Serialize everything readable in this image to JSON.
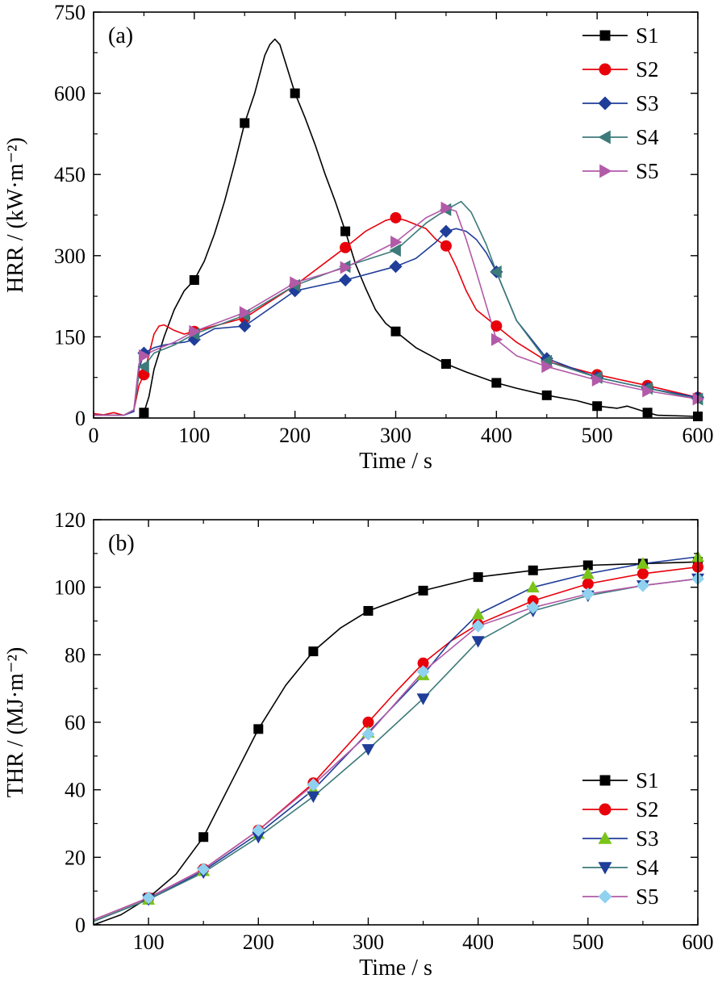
{
  "figure": {
    "panels": [
      "(a)",
      "(b)"
    ]
  },
  "chart_data": [
    {
      "type": "line",
      "panel_label": "(a)",
      "xlabel": "Time / s",
      "ylabel": "HRR / (kW·m⁻²)",
      "xlim": [
        0,
        600
      ],
      "ylim": [
        0,
        750
      ],
      "xticks": [
        0,
        100,
        200,
        300,
        400,
        500,
        600
      ],
      "yticks": [
        0,
        150,
        300,
        450,
        600,
        750
      ],
      "legend_position": "top-right",
      "grid": false,
      "series": [
        {
          "name": "S1",
          "color": "#000000",
          "marker": "square",
          "x": [
            0,
            30,
            40,
            45,
            50,
            55,
            60,
            70,
            80,
            90,
            100,
            110,
            120,
            130,
            140,
            150,
            160,
            170,
            175,
            180,
            185,
            190,
            200,
            210,
            220,
            230,
            240,
            250,
            260,
            270,
            280,
            290,
            300,
            320,
            340,
            350,
            370,
            400,
            420,
            450,
            480,
            500,
            520,
            530,
            550,
            560,
            600
          ],
          "y": [
            0,
            0,
            0,
            0,
            10,
            40,
            90,
            150,
            200,
            235,
            255,
            290,
            340,
            400,
            470,
            545,
            600,
            670,
            690,
            700,
            690,
            660,
            600,
            555,
            505,
            450,
            400,
            345,
            285,
            240,
            200,
            175,
            160,
            130,
            110,
            100,
            85,
            65,
            55,
            42,
            32,
            22,
            18,
            22,
            10,
            5,
            3
          ],
          "marker_x": [
            50,
            100,
            150,
            200,
            250,
            300,
            350,
            400,
            450,
            500,
            550,
            600
          ]
        },
        {
          "name": "S2",
          "color": "#e8000b",
          "marker": "circle",
          "x": [
            0,
            10,
            20,
            30,
            40,
            45,
            50,
            60,
            65,
            70,
            80,
            90,
            100,
            150,
            200,
            250,
            270,
            290,
            300,
            310,
            330,
            340,
            350,
            360,
            370,
            380,
            400,
            420,
            450,
            500,
            550,
            600
          ],
          "y": [
            8,
            6,
            10,
            5,
            15,
            60,
            80,
            155,
            170,
            172,
            162,
            155,
            160,
            185,
            245,
            315,
            345,
            365,
            370,
            365,
            350,
            330,
            318,
            280,
            235,
            200,
            170,
            140,
            105,
            80,
            60,
            38
          ],
          "marker_x": [
            50,
            100,
            150,
            200,
            250,
            300,
            350,
            400,
            450,
            500,
            550,
            600
          ]
        },
        {
          "name": "S3",
          "color": "#1f3d99",
          "marker": "diamond",
          "x": [
            0,
            30,
            40,
            45,
            50,
            60,
            70,
            80,
            90,
            100,
            120,
            150,
            200,
            250,
            300,
            320,
            340,
            350,
            360,
            370,
            380,
            390,
            400,
            420,
            450,
            500,
            550,
            600
          ],
          "y": [
            5,
            5,
            12,
            90,
            120,
            130,
            135,
            138,
            140,
            145,
            165,
            170,
            235,
            255,
            280,
            295,
            325,
            345,
            350,
            345,
            330,
            305,
            270,
            180,
            110,
            75,
            55,
            38
          ],
          "marker_x": [
            50,
            100,
            150,
            200,
            250,
            300,
            350,
            400,
            450,
            500,
            550,
            600
          ]
        },
        {
          "name": "S4",
          "color": "#3d7a7a",
          "marker": "triangle-left",
          "x": [
            0,
            30,
            40,
            45,
            50,
            60,
            80,
            100,
            150,
            200,
            250,
            300,
            330,
            350,
            360,
            365,
            375,
            390,
            400,
            420,
            450,
            500,
            550,
            600
          ],
          "y": [
            5,
            5,
            15,
            80,
            95,
            120,
            135,
            155,
            190,
            245,
            280,
            310,
            360,
            385,
            395,
            400,
            380,
            320,
            270,
            180,
            105,
            75,
            55,
            35
          ],
          "marker_x": [
            50,
            100,
            150,
            200,
            250,
            300,
            350,
            400,
            450,
            500,
            550,
            600
          ]
        },
        {
          "name": "S5",
          "color": "#b25aa8",
          "marker": "triangle-right",
          "x": [
            0,
            30,
            40,
            45,
            50,
            60,
            80,
            100,
            150,
            200,
            250,
            300,
            330,
            350,
            360,
            370,
            380,
            400,
            420,
            450,
            500,
            550,
            600
          ],
          "y": [
            5,
            5,
            15,
            100,
            115,
            125,
            140,
            160,
            195,
            250,
            278,
            325,
            370,
            388,
            382,
            330,
            270,
            145,
            115,
            95,
            70,
            50,
            35
          ],
          "marker_x": [
            50,
            100,
            150,
            200,
            250,
            300,
            350,
            400,
            450,
            500,
            550,
            600
          ]
        }
      ]
    },
    {
      "type": "line",
      "panel_label": "(b)",
      "xlabel": "Time / s",
      "ylabel": "THR / (MJ·m⁻²)",
      "xlim": [
        50,
        600
      ],
      "ylim": [
        0,
        120
      ],
      "xticks": [
        100,
        200,
        300,
        400,
        500,
        600
      ],
      "yticks": [
        0,
        20,
        40,
        60,
        80,
        100,
        120
      ],
      "legend_position": "bottom-right",
      "grid": false,
      "series": [
        {
          "name": "S1",
          "color": "#000000",
          "marker": "square",
          "x": [
            50,
            75,
            100,
            125,
            150,
            175,
            200,
            225,
            250,
            275,
            300,
            350,
            400,
            450,
            500,
            550,
            600
          ],
          "y": [
            0,
            3,
            8,
            15,
            26,
            42,
            58,
            71,
            81,
            88,
            93,
            99,
            103,
            105,
            106.5,
            107,
            107.5
          ],
          "marker_x": [
            100,
            150,
            200,
            250,
            300,
            350,
            400,
            450,
            500,
            550,
            600
          ]
        },
        {
          "name": "S2",
          "color": "#e8000b",
          "marker": "circle",
          "x": [
            50,
            100,
            150,
            200,
            250,
            300,
            325,
            350,
            375,
            400,
            450,
            500,
            550,
            600
          ],
          "y": [
            1.5,
            8,
            16.5,
            28,
            42,
            60,
            69,
            77.5,
            84,
            89,
            96,
            101,
            104,
            106
          ],
          "marker_x": [
            100,
            150,
            200,
            250,
            300,
            350,
            400,
            450,
            500,
            550,
            600
          ]
        },
        {
          "name": "S3",
          "color": "#7ac41a",
          "line_color": "#1f3d99",
          "marker": "triangle-up",
          "x": [
            50,
            100,
            150,
            200,
            250,
            300,
            350,
            375,
            400,
            450,
            500,
            550,
            600
          ],
          "y": [
            1,
            7.5,
            16,
            27,
            40,
            57,
            74,
            84,
            92,
            100,
            104,
            107,
            109
          ],
          "marker_x": [
            100,
            150,
            200,
            250,
            300,
            350,
            400,
            450,
            500,
            550,
            600
          ]
        },
        {
          "name": "S4",
          "color": "#1f3d99",
          "line_color": "#3d7a7a",
          "marker": "triangle-down",
          "x": [
            50,
            100,
            150,
            200,
            250,
            300,
            350,
            400,
            450,
            500,
            550,
            600
          ],
          "y": [
            1,
            7.5,
            15.5,
            26,
            38,
            52,
            67,
            84,
            93,
            97.5,
            100.5,
            102.5
          ],
          "marker_x": [
            100,
            150,
            200,
            250,
            300,
            350,
            400,
            450,
            500,
            550,
            600
          ]
        },
        {
          "name": "S5",
          "color": "#8fd1ef",
          "line_color": "#b25aa8",
          "marker": "diamond",
          "x": [
            50,
            100,
            150,
            200,
            250,
            300,
            350,
            400,
            450,
            500,
            550,
            600
          ],
          "y": [
            1.5,
            8,
            16.5,
            28,
            41.5,
            56.5,
            75,
            88.5,
            94,
            98,
            100.5,
            102.5
          ],
          "marker_x": [
            100,
            150,
            200,
            250,
            300,
            350,
            400,
            450,
            500,
            550,
            600
          ]
        }
      ]
    }
  ]
}
